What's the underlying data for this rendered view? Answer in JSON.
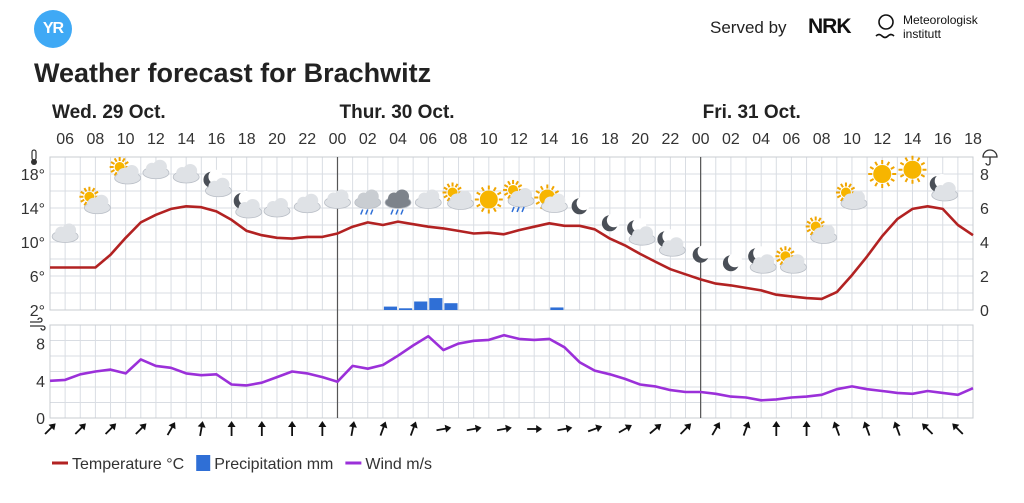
{
  "header": {
    "logo_text": "YR",
    "served_by": "Served by",
    "nrk": "NRK",
    "met_line1": "Meteorologisk",
    "met_line2": "institutt"
  },
  "title": "Weather forecast for Brachwitz",
  "colors": {
    "temperature": "#b22222",
    "precipitation": "#2f6fd6",
    "wind": "#9b30d9",
    "grid": "#d9dde3"
  },
  "chart_data": {
    "type": "line",
    "days": [
      {
        "label": "Wed. 29 Oct.",
        "index": 0
      },
      {
        "label": "Thur. 30 Oct.",
        "index": 19
      },
      {
        "label": "Fri. 31 Oct.",
        "index": 43
      }
    ],
    "x_ticks": [
      {
        "i": 1,
        "label": "06"
      },
      {
        "i": 3,
        "label": "08"
      },
      {
        "i": 5,
        "label": "10"
      },
      {
        "i": 7,
        "label": "12"
      },
      {
        "i": 9,
        "label": "14"
      },
      {
        "i": 11,
        "label": "16"
      },
      {
        "i": 13,
        "label": "18"
      },
      {
        "i": 15,
        "label": "20"
      },
      {
        "i": 17,
        "label": "22"
      },
      {
        "i": 19,
        "label": "00"
      },
      {
        "i": 21,
        "label": "02"
      },
      {
        "i": 23,
        "label": "04"
      },
      {
        "i": 25,
        "label": "06"
      },
      {
        "i": 27,
        "label": "08"
      },
      {
        "i": 29,
        "label": "10"
      },
      {
        "i": 31,
        "label": "12"
      },
      {
        "i": 33,
        "label": "14"
      },
      {
        "i": 35,
        "label": "16"
      },
      {
        "i": 37,
        "label": "18"
      },
      {
        "i": 39,
        "label": "20"
      },
      {
        "i": 41,
        "label": "22"
      },
      {
        "i": 43,
        "label": "00"
      },
      {
        "i": 45,
        "label": "02"
      },
      {
        "i": 47,
        "label": "04"
      },
      {
        "i": 49,
        "label": "06"
      },
      {
        "i": 51,
        "label": "08"
      },
      {
        "i": 53,
        "label": "10"
      },
      {
        "i": 55,
        "label": "12"
      },
      {
        "i": 57,
        "label": "14"
      },
      {
        "i": 59,
        "label": "16"
      },
      {
        "i": 61,
        "label": "18"
      }
    ],
    "temp_axis": {
      "ticks": [
        "2°",
        "6°",
        "10°",
        "14°",
        "18°"
      ],
      "values": [
        2,
        6,
        10,
        14,
        18
      ],
      "ylim": [
        2,
        20
      ]
    },
    "precip_axis": {
      "ticks": [
        "0",
        "2",
        "4",
        "6",
        "8"
      ],
      "values": [
        0,
        2,
        4,
        6,
        8
      ],
      "ylim": [
        0,
        9
      ]
    },
    "wind_axis": {
      "ticks": [
        "0",
        "4",
        "8"
      ],
      "values": [
        0,
        4,
        8
      ],
      "ylim": [
        0,
        10
      ]
    },
    "series": [
      {
        "name": "Temperature °C",
        "x": [
          0,
          1,
          2,
          3,
          4,
          5,
          6,
          7,
          8,
          9,
          10,
          11,
          12,
          13,
          14,
          15,
          16,
          17,
          18,
          19,
          20,
          21,
          22,
          23,
          24,
          25,
          26,
          27,
          28,
          29,
          30,
          31,
          32,
          33,
          34,
          35,
          36,
          37,
          38,
          39,
          40,
          41,
          42,
          43,
          44,
          45,
          46,
          47,
          48,
          49,
          50,
          51,
          52,
          53,
          54,
          55,
          56,
          57,
          58,
          59,
          60,
          61
        ],
        "values": [
          7.0,
          7.0,
          7.0,
          7.0,
          8.5,
          10.5,
          12.3,
          13.2,
          13.9,
          14.2,
          14.1,
          13.6,
          12.6,
          11.3,
          10.8,
          10.5,
          10.4,
          10.6,
          10.6,
          11.0,
          11.8,
          12.3,
          12.0,
          12.4,
          12.1,
          11.8,
          11.6,
          11.3,
          11.0,
          11.1,
          10.9,
          11.4,
          11.8,
          12.2,
          11.9,
          11.9,
          11.5,
          10.4,
          9.6,
          8.6,
          7.7,
          6.8,
          6.2,
          5.6,
          5.1,
          4.9,
          4.6,
          4.3,
          3.8,
          3.6,
          3.4,
          3.3,
          4.1,
          6.1,
          8.3,
          10.7,
          12.7,
          13.9,
          14.2,
          13.9,
          12.0,
          10.8
        ]
      },
      {
        "name": "Precipitation mm",
        "x": [
          22,
          23,
          24,
          25,
          26,
          33
        ],
        "values": [
          0.2,
          0.1,
          0.5,
          0.7,
          0.4,
          0.15
        ]
      },
      {
        "name": "Wind m/s",
        "x": [
          0,
          1,
          2,
          3,
          4,
          5,
          6,
          7,
          8,
          9,
          10,
          11,
          12,
          13,
          14,
          15,
          16,
          17,
          18,
          19,
          20,
          21,
          22,
          23,
          24,
          25,
          26,
          27,
          28,
          29,
          30,
          31,
          32,
          33,
          34,
          35,
          36,
          37,
          38,
          39,
          40,
          41,
          42,
          43,
          44,
          45,
          46,
          47,
          48,
          49,
          50,
          51,
          52,
          53,
          54,
          55,
          56,
          57,
          58,
          59,
          60,
          61
        ],
        "values": [
          4.0,
          4.1,
          4.7,
          5.0,
          5.2,
          4.8,
          6.3,
          5.6,
          5.4,
          4.8,
          4.6,
          4.7,
          3.6,
          3.5,
          3.8,
          4.4,
          5.0,
          4.8,
          4.4,
          3.9,
          5.6,
          5.3,
          5.7,
          6.7,
          7.8,
          8.8,
          7.3,
          8.0,
          8.3,
          8.4,
          8.9,
          8.5,
          8.4,
          8.5,
          7.6,
          6.0,
          5.1,
          4.7,
          4.2,
          3.6,
          3.4,
          3.0,
          2.8,
          2.8,
          2.6,
          2.3,
          2.2,
          1.9,
          2.0,
          2.2,
          2.3,
          2.5,
          3.1,
          3.4,
          3.1,
          2.9,
          2.7,
          2.6,
          2.9,
          2.7,
          2.5,
          3.2
        ]
      }
    ],
    "weather_icons": [
      {
        "i": 1,
        "t": 11,
        "kind": "cloud-icon"
      },
      {
        "i": 3,
        "t": 14.5,
        "kind": "partly-sunny-icon"
      },
      {
        "i": 5,
        "t": 18,
        "kind": "partly-sunny-icon"
      },
      {
        "i": 7,
        "t": 18.5,
        "kind": "cloud-icon"
      },
      {
        "i": 9,
        "t": 18,
        "kind": "cloud-icon"
      },
      {
        "i": 11,
        "t": 16.5,
        "kind": "partly-cloudy-night-icon"
      },
      {
        "i": 13,
        "t": 14,
        "kind": "partly-cloudy-night-icon"
      },
      {
        "i": 15,
        "t": 14,
        "kind": "cloud-icon"
      },
      {
        "i": 17,
        "t": 14.5,
        "kind": "cloud-icon"
      },
      {
        "i": 19,
        "t": 15,
        "kind": "cloud-icon"
      },
      {
        "i": 21,
        "t": 15,
        "kind": "rain-cloud-icon"
      },
      {
        "i": 23,
        "t": 15,
        "kind": "rain-cloud-dark-icon"
      },
      {
        "i": 25,
        "t": 15,
        "kind": "cloud-icon"
      },
      {
        "i": 27,
        "t": 15,
        "kind": "partly-sunny-icon"
      },
      {
        "i": 29,
        "t": 15,
        "kind": "sun-icon"
      },
      {
        "i": 31,
        "t": 15.3,
        "kind": "partly-sunny-rain-icon"
      },
      {
        "i": 33,
        "t": 15,
        "kind": "sun-behind-cloud-icon"
      },
      {
        "i": 35,
        "t": 14.2,
        "kind": "moon-icon"
      },
      {
        "i": 37,
        "t": 12.2,
        "kind": "moon-icon"
      },
      {
        "i": 39,
        "t": 10.8,
        "kind": "partly-cloudy-night-icon"
      },
      {
        "i": 41,
        "t": 9.5,
        "kind": "partly-cloudy-night-icon"
      },
      {
        "i": 43,
        "t": 8.5,
        "kind": "moon-icon"
      },
      {
        "i": 45,
        "t": 7.5,
        "kind": "moon-icon"
      },
      {
        "i": 47,
        "t": 7.5,
        "kind": "partly-cloudy-night-icon"
      },
      {
        "i": 49,
        "t": 7.5,
        "kind": "partly-sunny-icon"
      },
      {
        "i": 51,
        "t": 11,
        "kind": "partly-sunny-icon"
      },
      {
        "i": 53,
        "t": 15,
        "kind": "partly-sunny-icon"
      },
      {
        "i": 55,
        "t": 18,
        "kind": "sun-icon"
      },
      {
        "i": 57,
        "t": 18.5,
        "kind": "sun-icon"
      },
      {
        "i": 59,
        "t": 16,
        "kind": "partly-cloudy-night-icon"
      }
    ],
    "wind_directions": [
      {
        "i": 0,
        "deg": 45
      },
      {
        "i": 2,
        "deg": 45
      },
      {
        "i": 4,
        "deg": 45
      },
      {
        "i": 6,
        "deg": 45
      },
      {
        "i": 8,
        "deg": 30
      },
      {
        "i": 10,
        "deg": 10
      },
      {
        "i": 12,
        "deg": 0
      },
      {
        "i": 14,
        "deg": 0
      },
      {
        "i": 16,
        "deg": 0
      },
      {
        "i": 18,
        "deg": 0
      },
      {
        "i": 20,
        "deg": 10
      },
      {
        "i": 22,
        "deg": 20
      },
      {
        "i": 24,
        "deg": 20
      },
      {
        "i": 26,
        "deg": 80
      },
      {
        "i": 28,
        "deg": 80
      },
      {
        "i": 30,
        "deg": 80
      },
      {
        "i": 32,
        "deg": 90
      },
      {
        "i": 34,
        "deg": 80
      },
      {
        "i": 36,
        "deg": 70
      },
      {
        "i": 38,
        "deg": 60
      },
      {
        "i": 40,
        "deg": 50
      },
      {
        "i": 42,
        "deg": 45
      },
      {
        "i": 44,
        "deg": 30
      },
      {
        "i": 46,
        "deg": 20
      },
      {
        "i": 48,
        "deg": 0
      },
      {
        "i": 50,
        "deg": 0
      },
      {
        "i": 52,
        "deg": -20
      },
      {
        "i": 54,
        "deg": -20
      },
      {
        "i": 56,
        "deg": -20
      },
      {
        "i": 58,
        "deg": -45
      },
      {
        "i": 60,
        "deg": -45
      }
    ],
    "legend": [
      {
        "label": "Temperature °C",
        "kind": "line"
      },
      {
        "label": "Precipitation mm",
        "kind": "box"
      },
      {
        "label": "Wind m/s",
        "kind": "line"
      }
    ],
    "legend_placement": "bottom-left",
    "grid": true
  }
}
